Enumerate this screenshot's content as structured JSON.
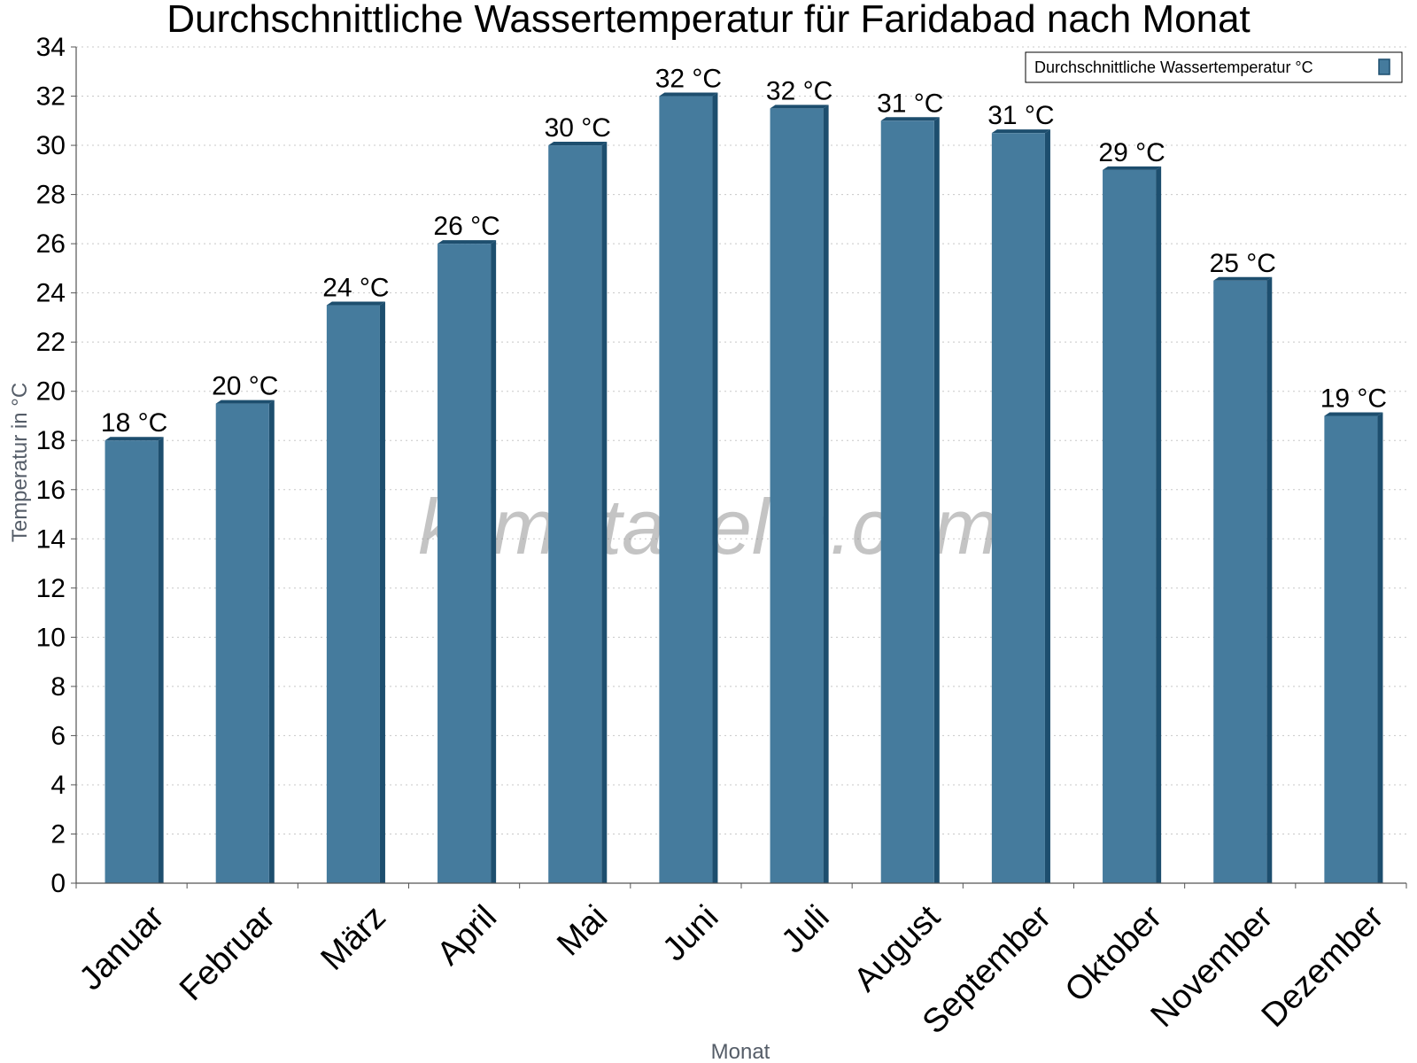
{
  "chart_data": {
    "type": "bar",
    "title": "Durchschnittliche Wassertemperatur für Faridabad nach Monat",
    "xlabel": "Monat",
    "ylabel": "Temperatur in °C",
    "categories": [
      "Januar",
      "Februar",
      "März",
      "April",
      "Mai",
      "Juni",
      "Juli",
      "August",
      "September",
      "Oktober",
      "November",
      "Dezember"
    ],
    "series": [
      {
        "name": "Durchschnittliche Wassertemperatur °C",
        "values": [
          18,
          19.5,
          23.5,
          26,
          30,
          32,
          31.5,
          31,
          30.5,
          29,
          24.5,
          19
        ],
        "labels": [
          "18 °C",
          "20 °C",
          "24 °C",
          "26 °C",
          "30 °C",
          "32 °C",
          "32 °C",
          "31 °C",
          "31 °C",
          "29 °C",
          "25 °C",
          "19 °C"
        ],
        "color": "#457b9d",
        "edge_color": "#1d4e6e"
      }
    ],
    "ylim": [
      0,
      34
    ],
    "yticks": [
      0,
      2,
      4,
      6,
      8,
      10,
      12,
      14,
      16,
      18,
      20,
      22,
      24,
      26,
      28,
      30,
      32,
      34
    ],
    "grid": true,
    "legend_position": "top-right",
    "watermark": "klimatabelle.com"
  }
}
